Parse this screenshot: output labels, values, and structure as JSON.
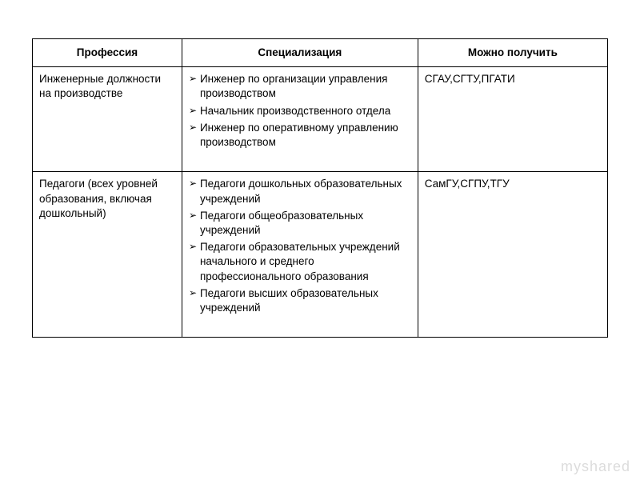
{
  "table": {
    "type": "table",
    "background_color": "#ffffff",
    "border_color": "#000000",
    "text_color": "#000000",
    "font_family": "Arial",
    "header_fontsize": 13.5,
    "body_fontsize": 13.5,
    "columns": [
      {
        "label": "Профессия",
        "width_pct": 26
      },
      {
        "label": "Специализация",
        "width_pct": 41
      },
      {
        "label": "Можно получить",
        "width_pct": 33
      }
    ],
    "rows": [
      {
        "profession": "Инженерные должности на производстве",
        "specializations": [
          "Инженер по организации управления производством",
          "Начальник производственного отдела",
          "Инженер по оперативному управлению производством"
        ],
        "where": "СГАУ,СГТУ,ПГАТИ"
      },
      {
        "profession": "Педагоги (всех уровней образования, включая дошкольный)",
        "specializations": [
          "Педагоги дошкольных образовательных учреждений",
          "Педагоги общеобразовательных учреждений",
          "Педагоги образовательных учреждений начального и среднего профессионального образования",
          "Педагоги высших образовательных учреждений"
        ],
        "where": "СамГУ,СГПУ,ТГУ"
      }
    ],
    "bullet_glyph": "➢"
  },
  "watermark": "myshared"
}
